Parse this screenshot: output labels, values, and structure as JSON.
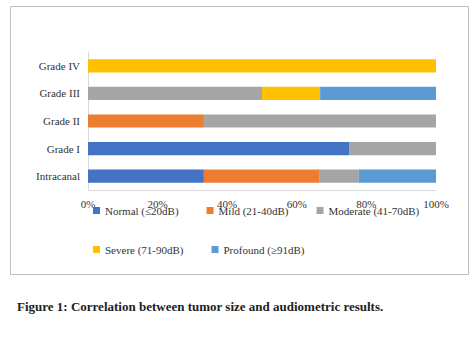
{
  "chart_data": {
    "type": "bar",
    "title": "Figure 1: Correlation between tumor size and audiometric results.",
    "orientation": "horizontal",
    "stacked": true,
    "grid": false,
    "legend": "bottom",
    "categories": [
      "Intracanal",
      "Grade I",
      "Grade II",
      "Grade III",
      "Grade IV"
    ],
    "series": [
      {
        "name": "Normal (≤20dB)",
        "color": "#4472c4",
        "values": [
          33.3,
          75,
          0,
          0,
          0
        ]
      },
      {
        "name": "Mild (21-40dB)",
        "color": "#ed7d31",
        "values": [
          33.3,
          0,
          33.3,
          0,
          0
        ]
      },
      {
        "name": "Moderate (41-70dB)",
        "color": "#a5a5a5",
        "values": [
          11.2,
          25,
          66.7,
          50,
          0
        ]
      },
      {
        "name": "Severe (71-90dB)",
        "color": "#ffc000",
        "values": [
          0,
          0,
          0,
          16.7,
          100
        ]
      },
      {
        "name": "Profound (≥91dB)",
        "color": "#5b9bd5",
        "values": [
          22.2,
          0,
          0,
          33.3,
          0
        ]
      }
    ],
    "xlim": [
      0,
      100
    ],
    "xticks": [
      {
        "value": 0,
        "label": "0%"
      },
      {
        "value": 20,
        "label": "20%"
      },
      {
        "value": 40,
        "label": "40%"
      },
      {
        "value": 60,
        "label": "60%"
      },
      {
        "value": 80,
        "label": "80%"
      },
      {
        "value": 100,
        "label": "100%"
      }
    ]
  }
}
